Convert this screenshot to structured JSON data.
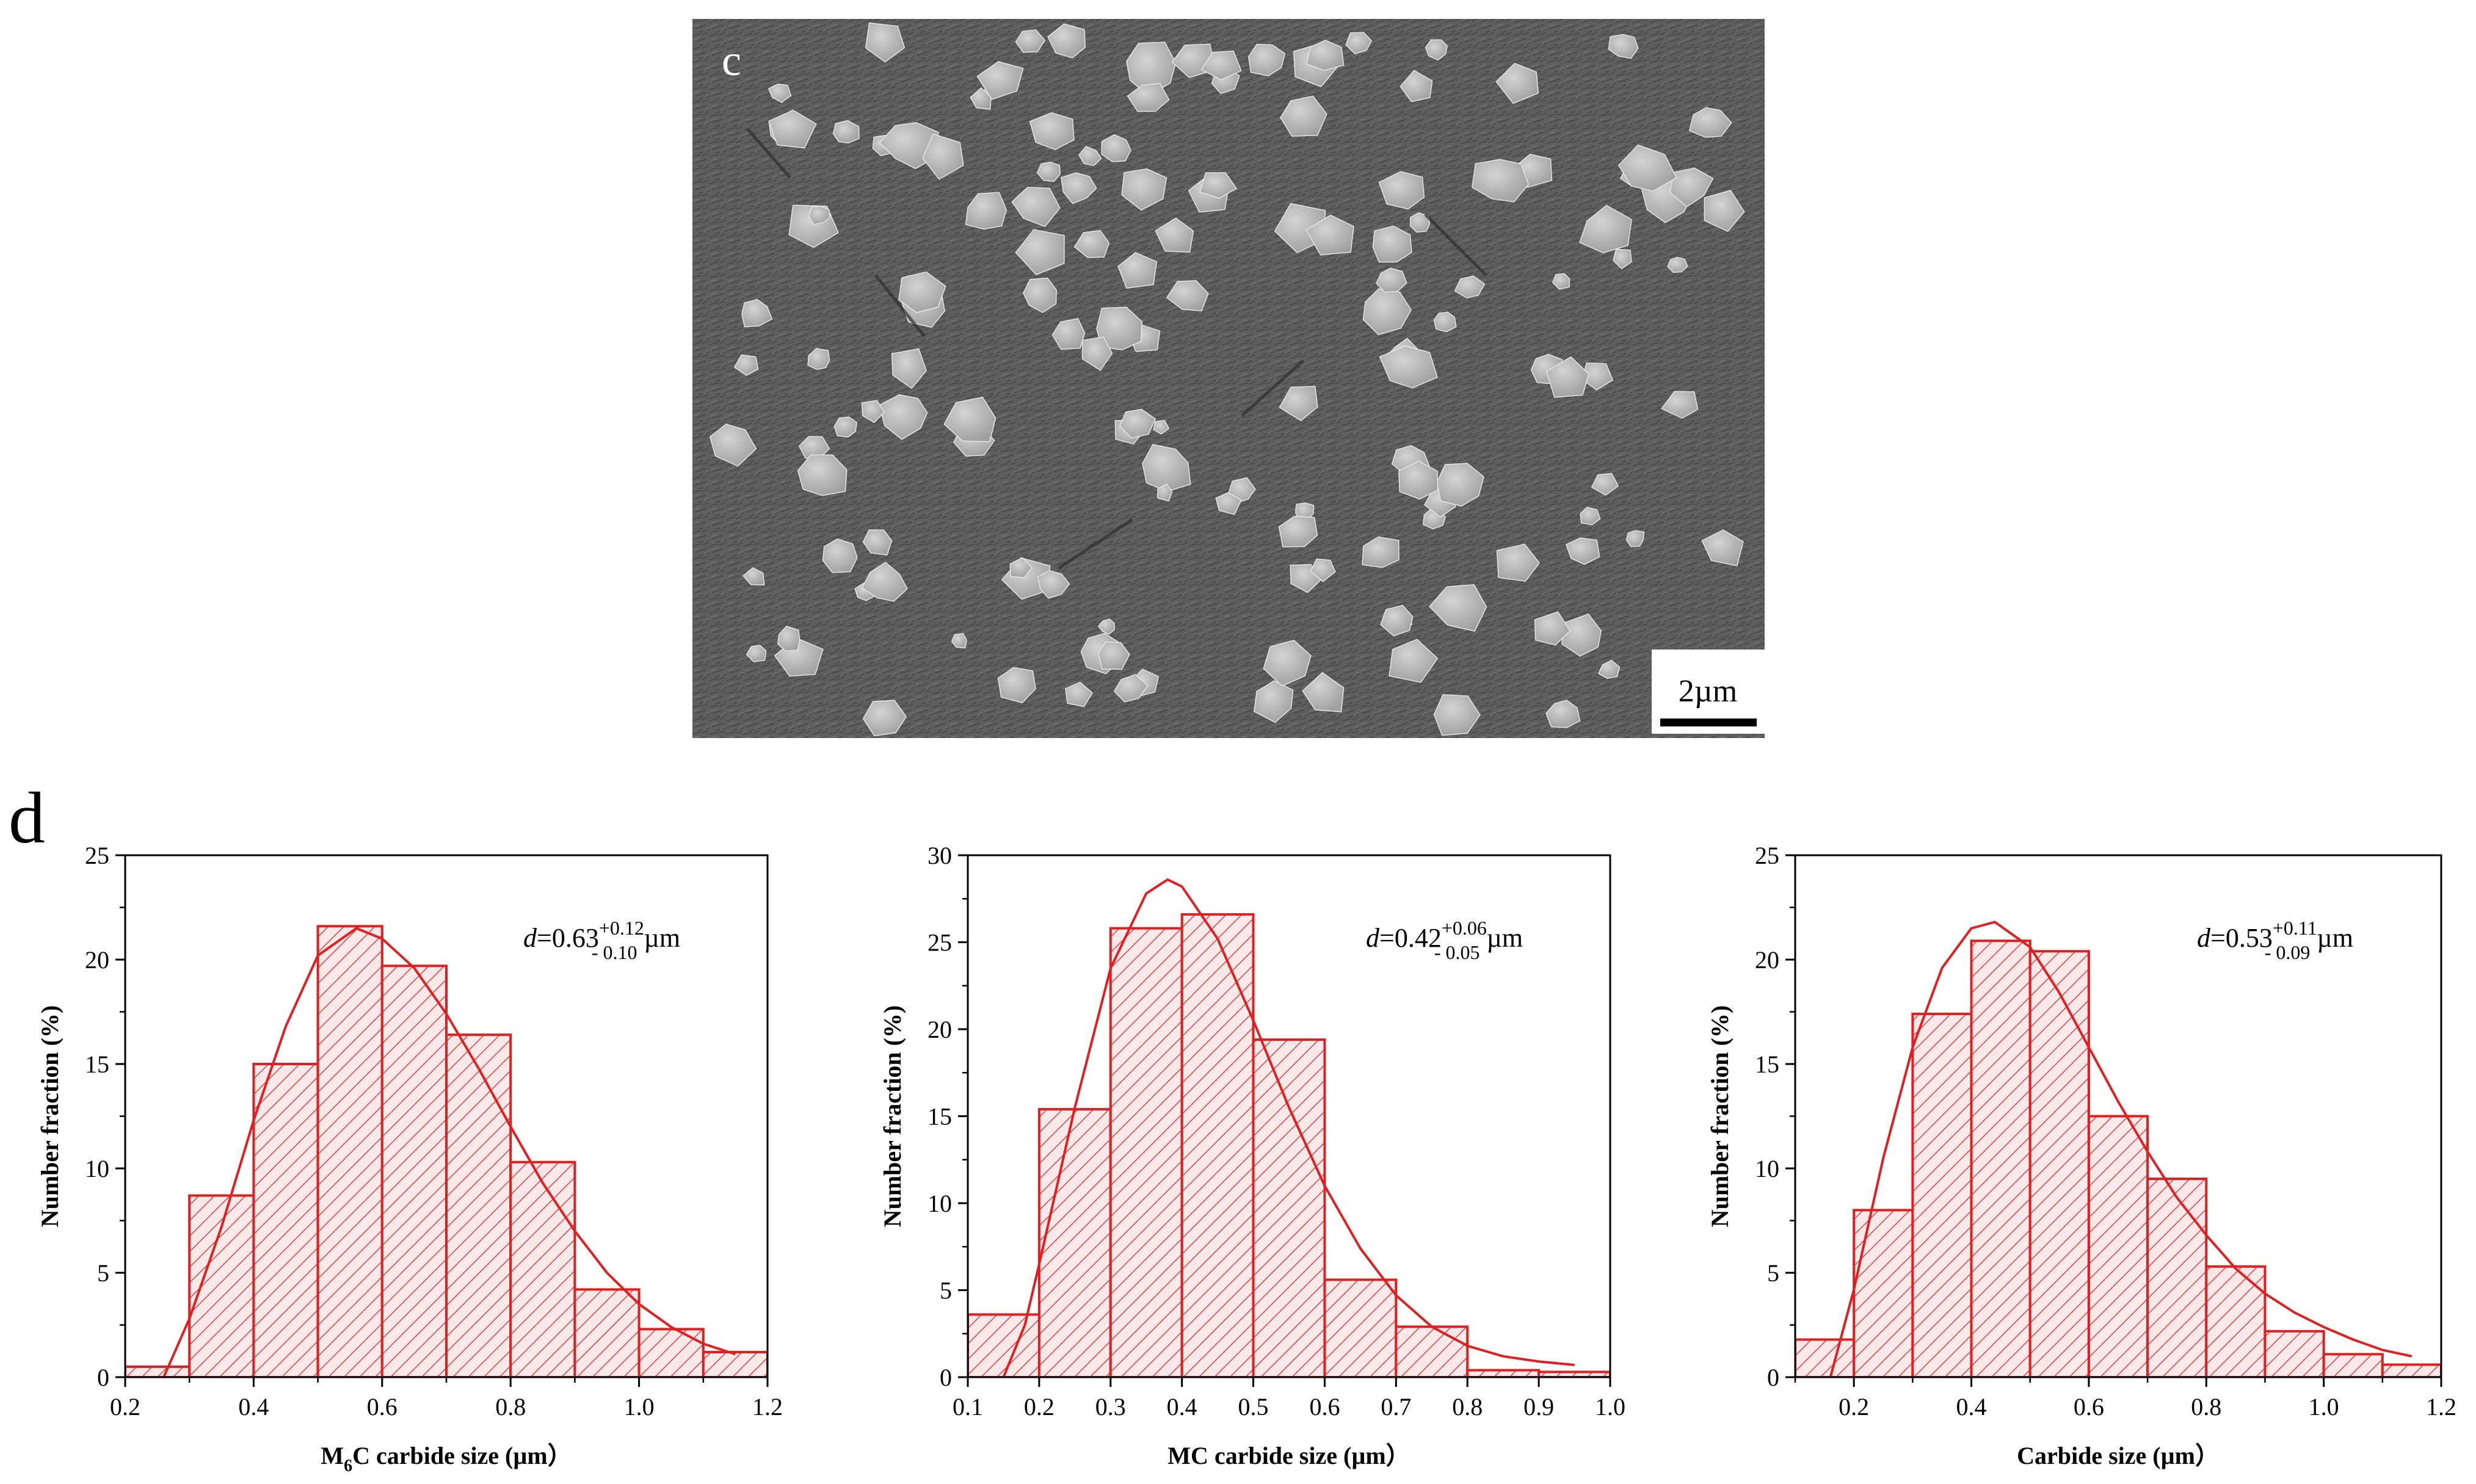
{
  "sem_panel": {
    "label": "c",
    "scale_bar_label": "2µm"
  },
  "charts_panel_label": "d",
  "chart_data": [
    {
      "type": "bar",
      "title": "",
      "xlabel": "M6C carbide size (µm）",
      "xlabel_parts": {
        "prefix": "M",
        "sub": "6",
        "suffix": "C carbide size (µm）"
      },
      "ylabel": "Number fraction (%)",
      "xlim": [
        0.2,
        1.2
      ],
      "ylim": [
        0,
        25
      ],
      "xticks": [
        "0.2",
        "0.4",
        "0.6",
        "0.8",
        "1.0",
        "1.2"
      ],
      "yticks": [
        "0",
        "5",
        "10",
        "15",
        "20",
        "25"
      ],
      "bin_width": 0.1,
      "bins": [
        0.2,
        0.3,
        0.4,
        0.5,
        0.6,
        0.7,
        0.8,
        0.9,
        1.0,
        1.1
      ],
      "values": [
        0.5,
        8.7,
        15.0,
        21.6,
        19.7,
        16.4,
        10.3,
        4.2,
        2.3,
        1.2
      ],
      "fit_curve": {
        "x": [
          0.26,
          0.3,
          0.35,
          0.4,
          0.45,
          0.5,
          0.56,
          0.6,
          0.65,
          0.7,
          0.75,
          0.8,
          0.85,
          0.9,
          0.95,
          1.0,
          1.05,
          1.1,
          1.15
        ],
        "y": [
          0,
          2.8,
          7.2,
          12.3,
          16.8,
          20.2,
          21.5,
          21.0,
          19.6,
          17.4,
          14.8,
          12.0,
          9.3,
          7.0,
          5.0,
          3.5,
          2.4,
          1.6,
          1.1
        ]
      },
      "annotation": {
        "italic": "d",
        "main": "=0.63",
        "sup": "+0.12",
        "sub": "- 0.10",
        "unit": " µm"
      },
      "colors": {
        "bar": "#e02020",
        "fit": "#e02020"
      }
    },
    {
      "type": "bar",
      "title": "",
      "xlabel": "MC carbide size (µm）",
      "ylabel": "Number fraction (%)",
      "xlim": [
        0.1,
        1.0
      ],
      "ylim": [
        0,
        30
      ],
      "xticks": [
        "0.1",
        "0.2",
        "0.3",
        "0.4",
        "0.5",
        "0.6",
        "0.7",
        "0.8",
        "0.9",
        "1.0"
      ],
      "yticks": [
        "0",
        "5",
        "10",
        "15",
        "20",
        "25",
        "30"
      ],
      "bin_width": 0.1,
      "bins": [
        0.1,
        0.2,
        0.3,
        0.4,
        0.5,
        0.6,
        0.7,
        0.8,
        0.9
      ],
      "values": [
        3.6,
        15.4,
        25.8,
        26.6,
        19.4,
        5.6,
        2.9,
        0.4,
        0.3
      ],
      "fit_curve": {
        "x": [
          0.15,
          0.18,
          0.2,
          0.25,
          0.3,
          0.35,
          0.38,
          0.4,
          0.45,
          0.5,
          0.55,
          0.6,
          0.65,
          0.7,
          0.75,
          0.8,
          0.85,
          0.9,
          0.95
        ],
        "y": [
          0,
          3.0,
          6.5,
          15.5,
          23.5,
          27.8,
          28.6,
          28.2,
          25.2,
          20.5,
          15.5,
          11.0,
          7.4,
          4.7,
          2.9,
          1.8,
          1.2,
          0.9,
          0.7
        ]
      },
      "annotation": {
        "italic": "d",
        "main": "=0.42",
        "sup": "+0.06",
        "sub": "- 0.05",
        "unit": " µm"
      },
      "colors": {
        "bar": "#e02020",
        "fit": "#e02020"
      }
    },
    {
      "type": "bar",
      "title": "",
      "xlabel": "Carbide size (µm）",
      "ylabel": "Number fraction (%)",
      "xlim": [
        0.1,
        1.2
      ],
      "ylim": [
        0,
        25
      ],
      "xticks": [
        "0.2",
        "0.4",
        "0.6",
        "0.8",
        "1.0",
        "1.2"
      ],
      "yticks": [
        "0",
        "5",
        "10",
        "15",
        "20",
        "25"
      ],
      "bin_width": 0.1,
      "bins": [
        0.1,
        0.2,
        0.3,
        0.4,
        0.5,
        0.6,
        0.7,
        0.8,
        0.9,
        1.0,
        1.1
      ],
      "values": [
        1.8,
        8.0,
        17.4,
        20.9,
        20.4,
        12.5,
        9.5,
        5.3,
        2.2,
        1.1,
        0.6
      ],
      "fit_curve": {
        "x": [
          0.16,
          0.2,
          0.25,
          0.3,
          0.35,
          0.4,
          0.44,
          0.5,
          0.55,
          0.6,
          0.65,
          0.7,
          0.75,
          0.8,
          0.85,
          0.9,
          0.95,
          1.0,
          1.05,
          1.1,
          1.15
        ],
        "y": [
          0,
          4.2,
          10.5,
          15.8,
          19.6,
          21.5,
          21.8,
          20.6,
          18.4,
          15.8,
          13.2,
          10.8,
          8.6,
          6.8,
          5.2,
          4.0,
          3.1,
          2.4,
          1.8,
          1.3,
          1.0
        ]
      },
      "annotation": {
        "italic": "d",
        "main": "=0.53",
        "sup": "+0.11",
        "sub": "- 0.09",
        "unit": " µm"
      },
      "colors": {
        "bar": "#e02020",
        "fit": "#e02020"
      }
    }
  ]
}
